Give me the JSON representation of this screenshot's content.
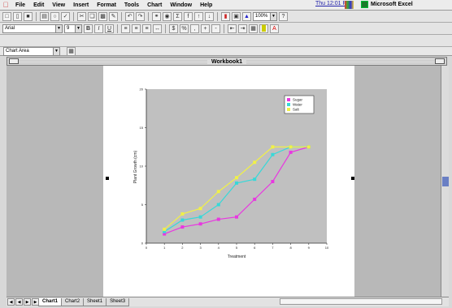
{
  "menubar": {
    "items": [
      "File",
      "Edit",
      "View",
      "Insert",
      "Format",
      "Tools",
      "Chart",
      "Window",
      "Help"
    ],
    "clock": "Thu 12:01 PM",
    "app_name": "Microsoft Excel"
  },
  "toolbar": {
    "font_name": "Arial",
    "font_size": "9",
    "zoom": "100%"
  },
  "chart_toolbar": {
    "object": "Chart Area"
  },
  "window": {
    "title": "Workbook1"
  },
  "sheet_tabs": [
    "Chart1",
    "Chart2",
    "Sheet1",
    "Sheet3"
  ],
  "active_tab_index": 0,
  "colors": {
    "series_magenta": "#e838e0",
    "series_cyan": "#38d8d8",
    "series_yellow": "#f0f048",
    "plot_bg": "#c0c0c0"
  },
  "chart_data": {
    "type": "line",
    "x": [
      1,
      2,
      3,
      4,
      5,
      6,
      7,
      8,
      9
    ],
    "series": [
      {
        "name": "Sugar",
        "values": [
          1.2,
          2.1,
          2.5,
          3.1,
          3.4,
          5.7,
          8.0,
          11.8,
          12.5
        ]
      },
      {
        "name": "Water",
        "values": [
          1.5,
          3.0,
          3.4,
          5.0,
          7.8,
          8.3,
          11.5,
          12.5,
          12.5
        ]
      },
      {
        "name": "Salt",
        "values": [
          1.8,
          3.8,
          4.5,
          6.7,
          8.5,
          10.5,
          12.5,
          12.5,
          12.5
        ]
      }
    ],
    "xlabel": "Treatment",
    "ylabel": "Plant Growth (cm)",
    "xlim": [
      0,
      10
    ],
    "ylim": [
      0,
      20
    ],
    "legend": "top-right",
    "grid": false
  }
}
